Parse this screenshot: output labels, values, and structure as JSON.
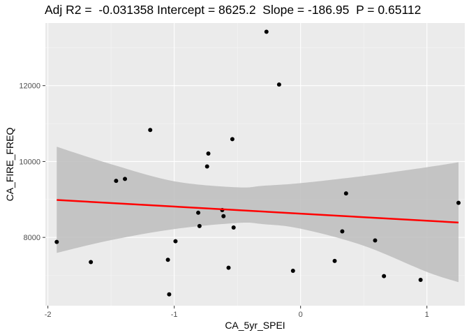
{
  "chart_data": {
    "type": "scatter",
    "title": "Adj R2 =  -0.031358 Intercept = 8625.2  Slope = -186.95  P = 0.65112",
    "xlabel": "CA_5yr_SPEI",
    "ylabel": "CA_FIRE_FREQ",
    "xlim": [
      -2.02,
      1.3
    ],
    "ylim": [
      6200,
      13650
    ],
    "x_ticks": [
      -2,
      -1,
      0,
      1
    ],
    "x_tick_labels": [
      "-2",
      "-1",
      "0",
      "1"
    ],
    "y_ticks": [
      8000,
      10000,
      12000
    ],
    "y_tick_labels": [
      "8000",
      "10000",
      "12000"
    ],
    "grid": true,
    "background": "#ebebeb",
    "point_color": "#000000",
    "fit_color": "#ff0000",
    "band_color": "#bdbdbd",
    "points": [
      {
        "x": -1.93,
        "y": 7880
      },
      {
        "x": -1.66,
        "y": 7350
      },
      {
        "x": -1.46,
        "y": 9490
      },
      {
        "x": -1.39,
        "y": 9540
      },
      {
        "x": -1.19,
        "y": 10830
      },
      {
        "x": -1.05,
        "y": 7410
      },
      {
        "x": -1.04,
        "y": 6500
      },
      {
        "x": -0.99,
        "y": 7900
      },
      {
        "x": -0.81,
        "y": 8650
      },
      {
        "x": -0.8,
        "y": 8300
      },
      {
        "x": -0.74,
        "y": 9870
      },
      {
        "x": -0.73,
        "y": 10210
      },
      {
        "x": -0.62,
        "y": 8720
      },
      {
        "x": -0.61,
        "y": 8560
      },
      {
        "x": -0.57,
        "y": 7200
      },
      {
        "x": -0.54,
        "y": 10590
      },
      {
        "x": -0.53,
        "y": 8260
      },
      {
        "x": -0.27,
        "y": 13420
      },
      {
        "x": -0.17,
        "y": 12030
      },
      {
        "x": -0.06,
        "y": 7120
      },
      {
        "x": 0.27,
        "y": 7380
      },
      {
        "x": 0.33,
        "y": 8160
      },
      {
        "x": 0.36,
        "y": 9160
      },
      {
        "x": 0.59,
        "y": 7920
      },
      {
        "x": 0.66,
        "y": 6980
      },
      {
        "x": 0.95,
        "y": 6880
      },
      {
        "x": 1.25,
        "y": 8910
      }
    ],
    "fit": {
      "x": [
        -1.93,
        1.25
      ],
      "y": [
        8986,
        8392
      ]
    },
    "band": {
      "x": [
        -1.93,
        -1.5,
        -1.0,
        -0.5,
        -0.3,
        0.0,
        0.5,
        1.0,
        1.25
      ],
      "upper": [
        10390,
        9930,
        9480,
        9320,
        9360,
        9430,
        9620,
        9850,
        9980
      ],
      "lower": [
        7590,
        7930,
        8220,
        8380,
        8350,
        8230,
        7780,
        7090,
        6820
      ]
    }
  }
}
